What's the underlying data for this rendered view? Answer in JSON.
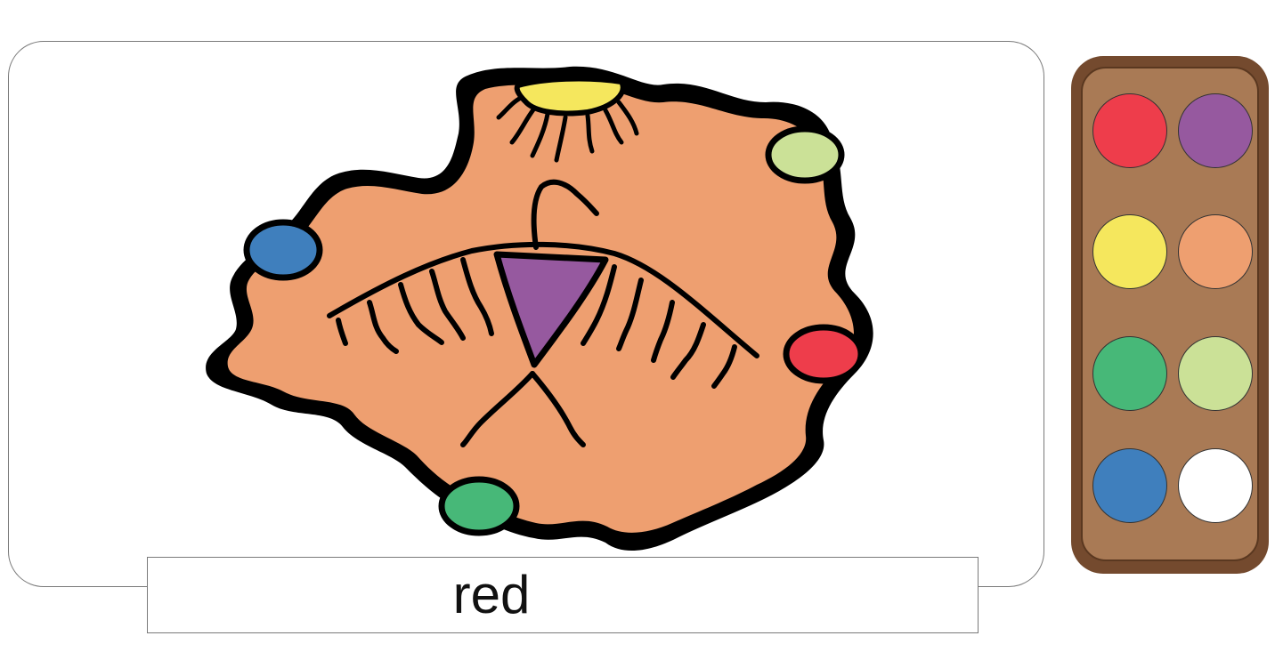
{
  "word": {
    "text": "red"
  },
  "palette": {
    "swatches": [
      {
        "name": "red",
        "color": "#ee3d4b"
      },
      {
        "name": "purple",
        "color": "#96599f"
      },
      {
        "name": "yellow",
        "color": "#f5e75d"
      },
      {
        "name": "orange",
        "color": "#ee9f70"
      },
      {
        "name": "green",
        "color": "#47b878"
      },
      {
        "name": "light-green",
        "color": "#cbe197"
      },
      {
        "name": "blue",
        "color": "#3f7fbd"
      },
      {
        "name": "white",
        "color": "#ffffff"
      }
    ]
  },
  "artwork": {
    "blob_color": "#ee9f70",
    "bird_color": "#96599f",
    "sun_color": "#f5e75d",
    "region_colors": {
      "top-right": "#cbe197",
      "left": "#3f7fbd",
      "right": "#ee3d4b",
      "bottom": "#47b878"
    }
  }
}
